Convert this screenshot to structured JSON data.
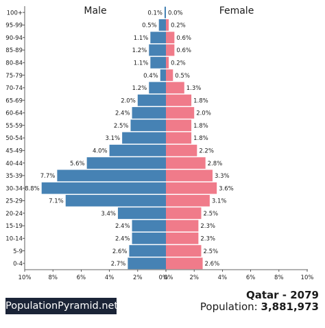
{
  "chart_data": {
    "type": "bar",
    "orientation": "horizontal-population-pyramid",
    "categories": [
      "100+",
      "95-99",
      "90-94",
      "85-89",
      "80-84",
      "75-79",
      "70-74",
      "65-69",
      "60-64",
      "55-59",
      "50-54",
      "45-49",
      "40-44",
      "35-39",
      "30-34",
      "25-29",
      "20-24",
      "15-19",
      "10-14",
      "5-9",
      "0-4"
    ],
    "series": [
      {
        "name": "Male",
        "color": "#4682b4",
        "values": [
          0.1,
          0.5,
          1.1,
          1.2,
          1.1,
          0.4,
          1.2,
          2.0,
          2.4,
          2.5,
          3.1,
          4.0,
          5.6,
          7.7,
          8.8,
          7.1,
          3.4,
          2.4,
          2.4,
          2.6,
          2.7
        ]
      },
      {
        "name": "Female",
        "color": "#f07b8a",
        "values": [
          0.0,
          0.2,
          0.6,
          0.6,
          0.2,
          0.5,
          1.3,
          1.8,
          2.0,
          1.8,
          1.8,
          2.2,
          2.8,
          3.3,
          3.6,
          3.1,
          2.5,
          2.3,
          2.3,
          2.5,
          2.6
        ]
      }
    ],
    "value_labels": {
      "male": [
        "0.1%",
        "0.5%",
        "1.1%",
        "1.2%",
        "1.1%",
        "0.4%",
        "1.2%",
        "2.0%",
        "2.4%",
        "2.5%",
        "3.1%",
        "4.0%",
        "5.6%",
        "7.7%",
        "8.8%",
        "7.1%",
        "3.4%",
        "2.4%",
        "2.4%",
        "2.6%",
        "2.7%"
      ],
      "female": [
        "0.0%",
        "0.2%",
        "0.6%",
        "0.6%",
        "0.2%",
        "0.5%",
        "1.3%",
        "1.8%",
        "2.0%",
        "1.8%",
        "1.8%",
        "2.2%",
        "2.8%",
        "3.3%",
        "3.6%",
        "3.1%",
        "2.5%",
        "2.3%",
        "2.3%",
        "2.5%",
        "2.6%"
      ]
    },
    "x_ticks": [
      "10%",
      "8%",
      "6%",
      "4%",
      "2%",
      "0%",
      "0%",
      "2%",
      "4%",
      "6%",
      "8%",
      "10%"
    ],
    "xlim": [
      -10,
      10
    ],
    "grid": false
  },
  "brand": "PopulationPyramid.net",
  "title": "Qatar - 2079",
  "population_label": "Population:",
  "population_value": "3,881,973"
}
